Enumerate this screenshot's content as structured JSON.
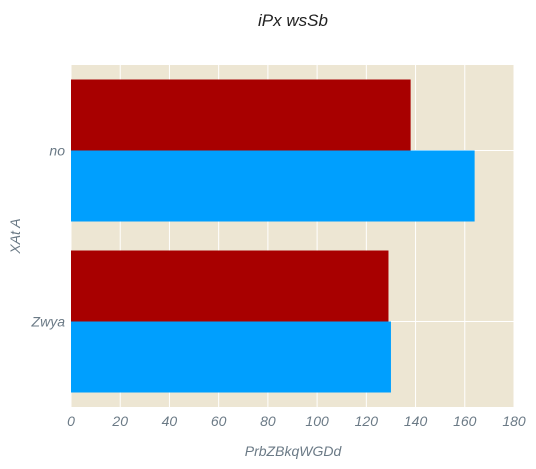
{
  "chart_data": {
    "type": "bar",
    "orientation": "horizontal",
    "title": "iPx wsSb",
    "xlabel": "PrbZBkqWGDd",
    "ylabel": "XAt A",
    "categories": [
      "no",
      "Zwya"
    ],
    "series": [
      {
        "values": [
          138,
          129
        ],
        "color": "#a80000"
      },
      {
        "values": [
          164,
          130
        ],
        "color": "#009ffe"
      }
    ],
    "xlim": [
      0,
      180
    ],
    "xticks": [
      0,
      20,
      40,
      60,
      80,
      100,
      120,
      140,
      160,
      180
    ],
    "grid": true,
    "background": "#ede6d3"
  }
}
